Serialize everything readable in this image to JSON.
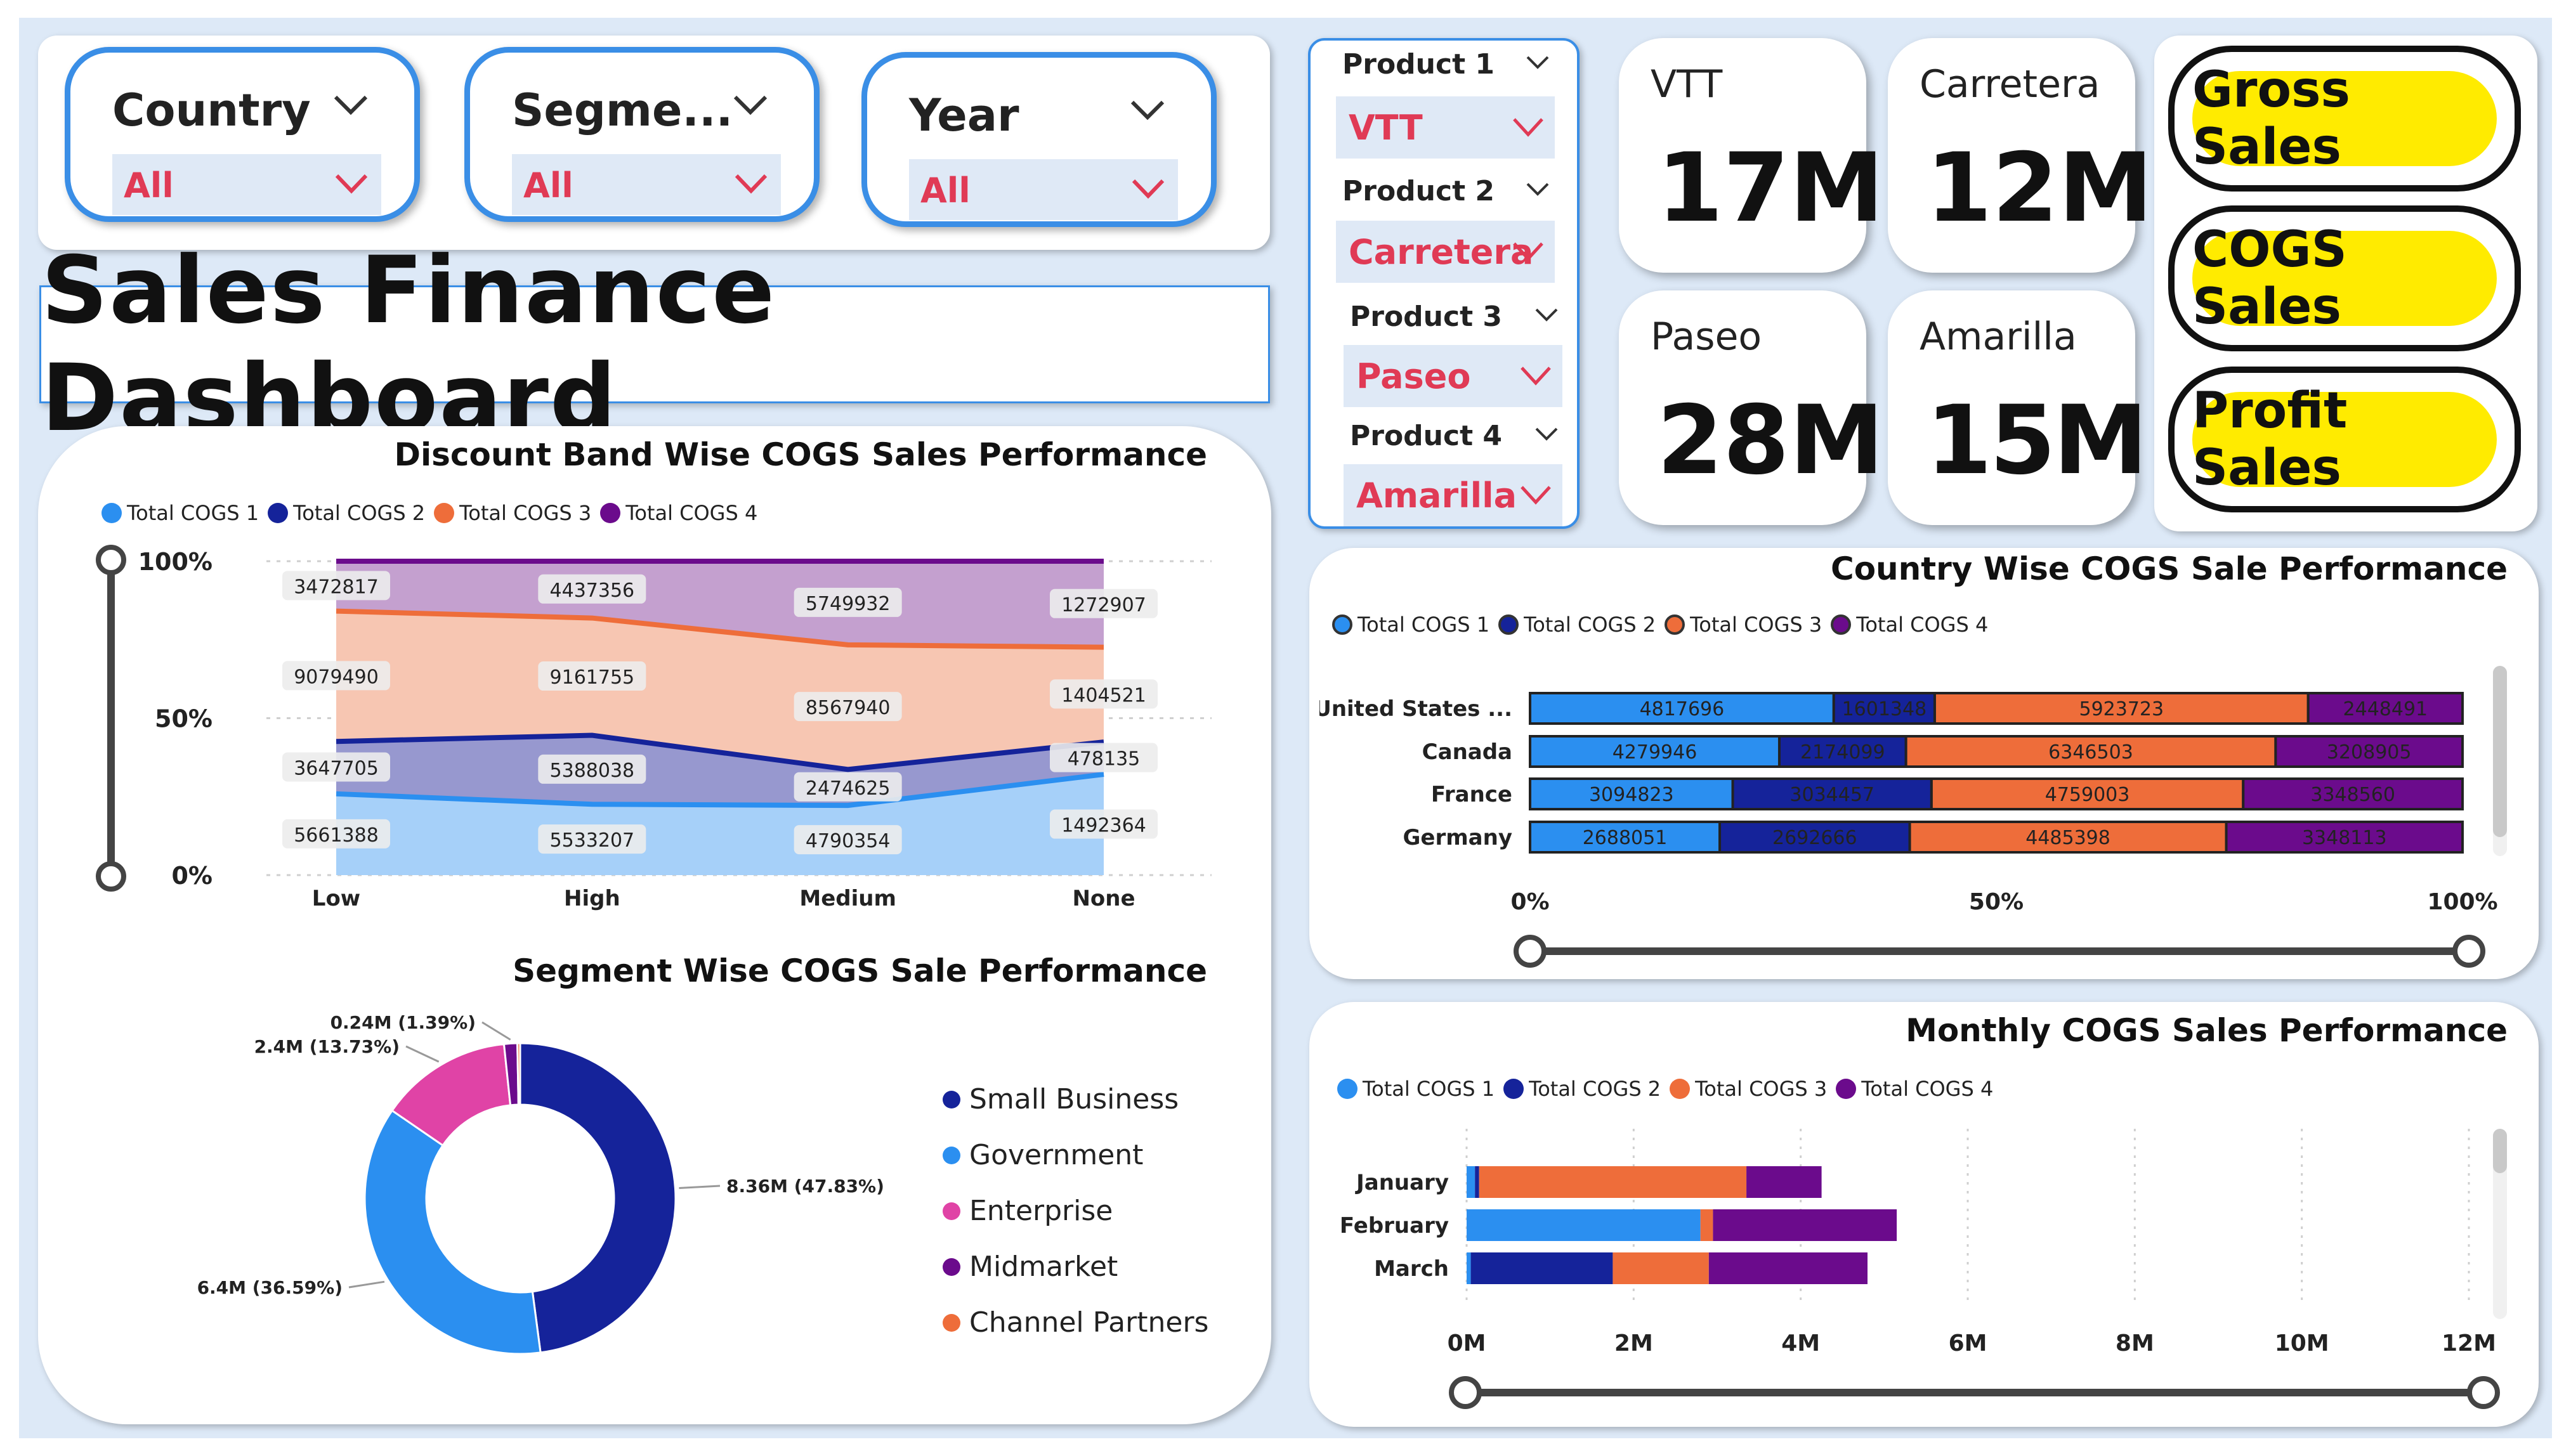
{
  "title": "Sales Finance Dashboard",
  "slicers": [
    {
      "label": "Country",
      "value": "All"
    },
    {
      "label": "Segme...",
      "value": "All"
    },
    {
      "label": "Year",
      "value": "All"
    }
  ],
  "products": [
    {
      "label": "Product 1",
      "value": "VTT"
    },
    {
      "label": "Product 2",
      "value": "Carretera"
    },
    {
      "label": "Product 3",
      "value": "Paseo"
    },
    {
      "label": "Product 4",
      "value": "Amarilla"
    }
  ],
  "kpis": [
    {
      "label": "VTT",
      "value": "17M"
    },
    {
      "label": "Carretera",
      "value": "12M"
    },
    {
      "label": "Paseo",
      "value": "28M"
    },
    {
      "label": "Amarilla",
      "value": "15M"
    }
  ],
  "buttons": [
    "Gross Sales",
    "COGS Sales",
    "Profit Sales"
  ],
  "colors": {
    "c1": "#2b8ff0",
    "c2": "#15239a",
    "c3": "#ee6d3a",
    "c4": "#6b0b8c",
    "pink": "#e043a6",
    "accent": "#3a8ee6",
    "yellow": "#ffeb00"
  },
  "legend_series": [
    "Total COGS 1",
    "Total COGS 2",
    "Total COGS 3",
    "Total COGS 4"
  ],
  "chart_data": [
    {
      "type": "area",
      "title": "Discount Band Wise COGS Sales Performance",
      "categories": [
        "Low",
        "High",
        "Medium",
        "None"
      ],
      "series": [
        {
          "name": "Total COGS 1",
          "values": [
            5661388,
            5533207,
            4790354,
            1492364
          ]
        },
        {
          "name": "Total COGS 2",
          "values": [
            3647705,
            5388038,
            2474625,
            478135
          ]
        },
        {
          "name": "Total COGS 3",
          "values": [
            9079490,
            9161755,
            8567940,
            1404521
          ]
        },
        {
          "name": "Total COGS 4",
          "values": [
            3472817,
            4437356,
            5749932,
            1272907
          ]
        }
      ],
      "stacking": "percent",
      "yticks": [
        "0%",
        "50%",
        "100%"
      ]
    },
    {
      "type": "pie",
      "title": "Segment Wise COGS Sale Performance",
      "labels": [
        "Small Business",
        "Government",
        "Enterprise",
        "Midmarket",
        "Channel Partners"
      ],
      "values": [
        8.36,
        6.4,
        2.4,
        0.24,
        0.05
      ],
      "data_labels": [
        "8.36M (47.83%)",
        "6.4M (36.59%)",
        "2.4M (13.73%)",
        "0.24M (1.39%)",
        ""
      ]
    },
    {
      "type": "bar",
      "title": "Country Wise COGS Sale Performance",
      "categories": [
        "United States ...",
        "Canada",
        "France",
        "Germany"
      ],
      "series": [
        {
          "name": "Total COGS 1",
          "values": [
            4817696,
            4279946,
            3094823,
            2688051
          ]
        },
        {
          "name": "Total COGS 2",
          "values": [
            1601348,
            2174099,
            3034457,
            2692666
          ]
        },
        {
          "name": "Total COGS 3",
          "values": [
            5923723,
            6346503,
            4759003,
            4485398
          ]
        },
        {
          "name": "Total COGS 4",
          "values": [
            2448491,
            3208905,
            3348560,
            3348113
          ]
        }
      ],
      "stacking": "percent",
      "xticks": [
        "0%",
        "50%",
        "100%"
      ]
    },
    {
      "type": "bar",
      "title": "Monthly COGS Sales Performance",
      "categories": [
        "January",
        "February",
        "March"
      ],
      "series": [
        {
          "name": "Total COGS 1",
          "values": [
            0.1,
            2.8,
            0.05
          ]
        },
        {
          "name": "Total COGS 2",
          "values": [
            0.05,
            0,
            1.7
          ]
        },
        {
          "name": "Total COGS 3",
          "values": [
            3.2,
            0.15,
            1.15
          ]
        },
        {
          "name": "Total COGS 4",
          "values": [
            0.9,
            2.2,
            1.9
          ]
        }
      ],
      "xlim": [
        0,
        12
      ],
      "xticks": [
        "0M",
        "2M",
        "4M",
        "6M",
        "8M",
        "10M",
        "12M"
      ]
    }
  ]
}
